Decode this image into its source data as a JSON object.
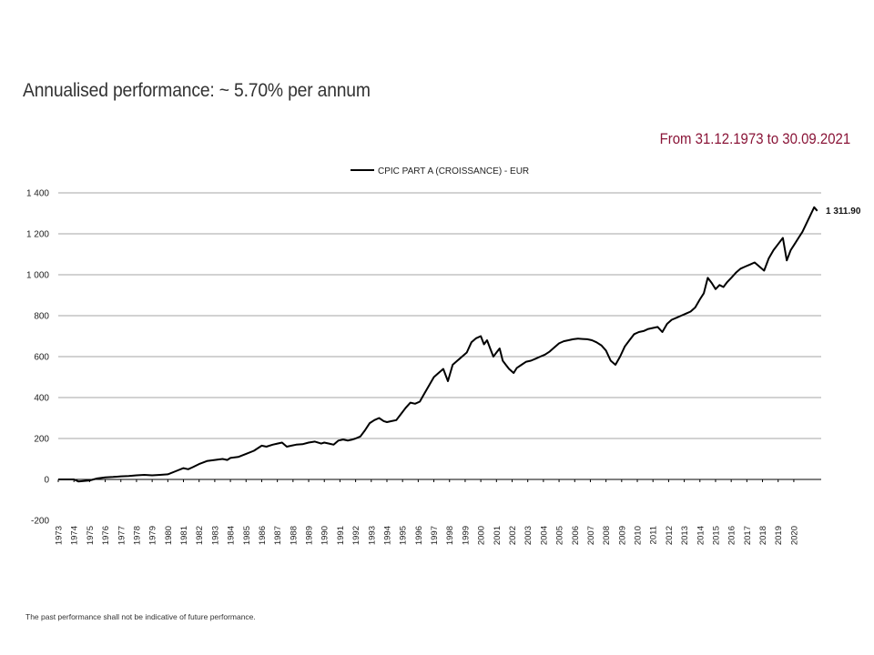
{
  "header": {
    "headline": "Annualised performance: ~ 5.70% per annum",
    "period": "From 31.12.1973 to 30.09.2021"
  },
  "footer": {
    "disclaimer": "The past performance shall not be indicative of future performance."
  },
  "colors": {
    "line": "#000000",
    "grid": "#a6a6a6",
    "period_text": "#8a1538"
  },
  "chart_data": {
    "type": "line",
    "title": "",
    "xlabel": "",
    "ylabel": "",
    "ylim": [
      -200,
      1400
    ],
    "yticks": [
      -200,
      0,
      200,
      400,
      600,
      800,
      1000,
      1200,
      1400
    ],
    "ytick_labels": [
      "-200",
      "0",
      "200",
      "400",
      "600",
      "800",
      "1 000",
      "1 200",
      "1 400"
    ],
    "xlim": [
      1973.0,
      2021.75
    ],
    "xticks": [
      "1973",
      "1974",
      "1975",
      "1976",
      "1977",
      "1978",
      "1979",
      "1980",
      "1981",
      "1982",
      "1983",
      "1984",
      "1985",
      "1986",
      "1987",
      "1988",
      "1989",
      "1990",
      "1991",
      "1992",
      "1993",
      "1994",
      "1995",
      "1996",
      "1997",
      "1998",
      "1999",
      "2000",
      "2001",
      "2002",
      "2003",
      "2004",
      "2005",
      "2006",
      "2007",
      "2008",
      "2009",
      "2010",
      "2011",
      "2012",
      "2013",
      "2014",
      "2015",
      "2016",
      "2017",
      "2018",
      "2019",
      "2020"
    ],
    "grid": true,
    "legend": "top-center",
    "end_label": "1 311.90",
    "series": [
      {
        "name": "CPIC PART A (CROISSANCE) - EUR",
        "x": [
          1973.0,
          1974.0,
          1974.3,
          1975.0,
          1975.5,
          1976.0,
          1976.5,
          1977.0,
          1977.5,
          1978.0,
          1978.5,
          1979.0,
          1979.5,
          1980.0,
          1980.5,
          1981.0,
          1981.3,
          1981.6,
          1982.0,
          1982.5,
          1983.0,
          1983.5,
          1983.8,
          1984.0,
          1984.5,
          1985.0,
          1985.5,
          1986.0,
          1986.3,
          1986.7,
          1987.0,
          1987.3,
          1987.6,
          1987.9,
          1988.2,
          1988.6,
          1989.0,
          1989.4,
          1989.8,
          1990.0,
          1990.3,
          1990.6,
          1990.9,
          1991.2,
          1991.5,
          1991.8,
          1992.0,
          1992.3,
          1992.6,
          1992.9,
          1993.2,
          1993.5,
          1993.8,
          1994.0,
          1994.3,
          1994.6,
          1994.9,
          1995.2,
          1995.5,
          1995.8,
          1996.1,
          1996.4,
          1996.7,
          1997.0,
          1997.3,
          1997.6,
          1997.9,
          1998.2,
          1998.5,
          1998.65,
          1998.8,
          1999.1,
          1999.4,
          1999.7,
          2000.0,
          2000.2,
          2000.4,
          2000.6,
          2000.8,
          2001.0,
          2001.2,
          2001.4,
          2001.6,
          2001.8,
          2002.1,
          2002.3,
          2002.6,
          2002.9,
          2003.2,
          2003.5,
          2003.8,
          2004.1,
          2004.4,
          2004.7,
          2005.0,
          2005.3,
          2005.6,
          2005.9,
          2006.2,
          2006.5,
          2006.8,
          2007.1,
          2007.4,
          2007.7,
          2008.0,
          2008.3,
          2008.6,
          2008.9,
          2009.2,
          2009.5,
          2009.8,
          2010.1,
          2010.4,
          2010.7,
          2011.0,
          2011.3,
          2011.6,
          2011.9,
          2012.2,
          2012.5,
          2012.8,
          2013.1,
          2013.4,
          2013.7,
          2014.0,
          2014.25,
          2014.5,
          2014.75,
          2015.0,
          2015.25,
          2015.5,
          2015.75,
          2016.0,
          2016.3,
          2016.6,
          2016.9,
          2017.2,
          2017.5,
          2017.8,
          2018.1,
          2018.4,
          2018.7,
          2019.0,
          2019.3,
          2019.55,
          2019.8,
          2020.05,
          2020.3,
          2020.55,
          2020.8,
          2021.05,
          2021.3,
          2021.5
        ],
        "values": [
          0,
          0,
          -10,
          -5,
          5,
          10,
          12,
          15,
          17,
          20,
          22,
          20,
          22,
          25,
          40,
          55,
          50,
          60,
          75,
          90,
          95,
          100,
          95,
          105,
          110,
          125,
          140,
          165,
          160,
          170,
          175,
          180,
          160,
          165,
          170,
          172,
          180,
          185,
          175,
          180,
          175,
          170,
          190,
          195,
          190,
          195,
          200,
          210,
          240,
          275,
          290,
          300,
          285,
          280,
          285,
          290,
          320,
          350,
          375,
          370,
          380,
          420,
          460,
          500,
          520,
          540,
          480,
          560,
          580,
          590,
          600,
          620,
          670,
          690,
          700,
          660,
          680,
          640,
          600,
          620,
          640,
          580,
          560,
          540,
          520,
          545,
          560,
          575,
          580,
          590,
          600,
          610,
          625,
          645,
          665,
          675,
          680,
          685,
          688,
          686,
          685,
          680,
          670,
          655,
          630,
          580,
          560,
          600,
          650,
          680,
          710,
          720,
          725,
          735,
          740,
          745,
          720,
          760,
          780,
          790,
          800,
          810,
          820,
          840,
          880,
          910,
          985,
          960,
          930,
          950,
          940,
          965,
          985,
          1010,
          1030,
          1040,
          1050,
          1060,
          1040,
          1020,
          1080,
          1120,
          1150,
          1180,
          1070,
          1120,
          1150,
          1180,
          1210,
          1250,
          1290,
          1330,
          1311.9
        ]
      }
    ]
  }
}
